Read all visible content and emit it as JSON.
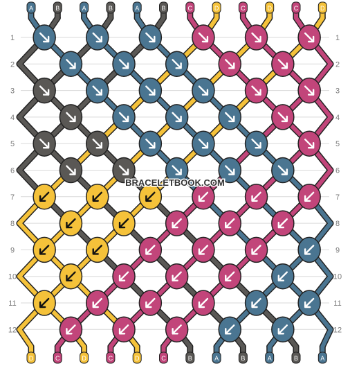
{
  "colors": {
    "A": "#4a7591",
    "B": "#5a5855",
    "C": "#c2457a",
    "D": "#f5c23a",
    "grid": "#d9d9d9",
    "row_number": "#7a7a7a",
    "arrow": "#ffffff",
    "arrow_on_yellow": "#111111",
    "watermark": "#333333"
  },
  "strings_top": [
    "A",
    "B",
    "A",
    "B",
    "A",
    "B",
    "C",
    "D",
    "C",
    "D",
    "C",
    "D"
  ],
  "strings_bottom": [
    "D",
    "C",
    "D",
    "C",
    "D",
    "C",
    "B",
    "A",
    "B",
    "A",
    "B",
    "A"
  ],
  "row_numbers": [
    "1",
    "2",
    "3",
    "4",
    "5",
    "6",
    "7",
    "8",
    "9",
    "10",
    "11",
    "12"
  ],
  "watermark": "BRACELETBOOK.COM",
  "knots": [
    [
      {
        "c": "A",
        "d": "r"
      },
      {
        "c": "A",
        "d": "r"
      },
      {
        "c": "A",
        "d": "r"
      },
      {
        "c": "C",
        "d": "r"
      },
      {
        "c": "C",
        "d": "r"
      },
      {
        "c": "C",
        "d": "r"
      }
    ],
    [
      {
        "c": "A",
        "d": "r"
      },
      {
        "c": "A",
        "d": "r"
      },
      {
        "c": "A",
        "d": "r"
      },
      {
        "c": "C",
        "d": "r"
      },
      {
        "c": "C",
        "d": "r"
      }
    ],
    [
      {
        "c": "B",
        "d": "r"
      },
      {
        "c": "A",
        "d": "r"
      },
      {
        "c": "A",
        "d": "r"
      },
      {
        "c": "A",
        "d": "r"
      },
      {
        "c": "C",
        "d": "r"
      },
      {
        "c": "C",
        "d": "r"
      }
    ],
    [
      {
        "c": "B",
        "d": "r"
      },
      {
        "c": "A",
        "d": "r"
      },
      {
        "c": "A",
        "d": "r"
      },
      {
        "c": "A",
        "d": "r"
      },
      {
        "c": "C",
        "d": "r"
      }
    ],
    [
      {
        "c": "B",
        "d": "r"
      },
      {
        "c": "B",
        "d": "r"
      },
      {
        "c": "A",
        "d": "r"
      },
      {
        "c": "A",
        "d": "r"
      },
      {
        "c": "A",
        "d": "r"
      },
      {
        "c": "C",
        "d": "r"
      }
    ],
    [
      {
        "c": "B",
        "d": "r"
      },
      {
        "c": "B",
        "d": "r"
      },
      {
        "c": "A",
        "d": "r"
      },
      {
        "c": "A",
        "d": "r"
      },
      {
        "c": "A",
        "d": "r"
      }
    ],
    [
      {
        "c": "D",
        "d": "l"
      },
      {
        "c": "D",
        "d": "l"
      },
      {
        "c": "D",
        "d": "l"
      },
      {
        "c": "C",
        "d": "l"
      },
      {
        "c": "C",
        "d": "l"
      },
      {
        "c": "C",
        "d": "l"
      }
    ],
    [
      {
        "c": "D",
        "d": "l"
      },
      {
        "c": "D",
        "d": "l"
      },
      {
        "c": "C",
        "d": "l"
      },
      {
        "c": "C",
        "d": "l"
      },
      {
        "c": "C",
        "d": "l"
      }
    ],
    [
      {
        "c": "D",
        "d": "l"
      },
      {
        "c": "D",
        "d": "l"
      },
      {
        "c": "C",
        "d": "l"
      },
      {
        "c": "C",
        "d": "l"
      },
      {
        "c": "C",
        "d": "l"
      },
      {
        "c": "A",
        "d": "l"
      }
    ],
    [
      {
        "c": "D",
        "d": "l"
      },
      {
        "c": "C",
        "d": "l"
      },
      {
        "c": "C",
        "d": "l"
      },
      {
        "c": "C",
        "d": "l"
      },
      {
        "c": "A",
        "d": "l"
      }
    ],
    [
      {
        "c": "D",
        "d": "l"
      },
      {
        "c": "C",
        "d": "l"
      },
      {
        "c": "C",
        "d": "l"
      },
      {
        "c": "C",
        "d": "l"
      },
      {
        "c": "A",
        "d": "l"
      },
      {
        "c": "A",
        "d": "l"
      }
    ],
    [
      {
        "c": "C",
        "d": "l"
      },
      {
        "c": "C",
        "d": "l"
      },
      {
        "c": "C",
        "d": "l"
      },
      {
        "c": "A",
        "d": "l"
      },
      {
        "c": "A",
        "d": "l"
      }
    ]
  ]
}
